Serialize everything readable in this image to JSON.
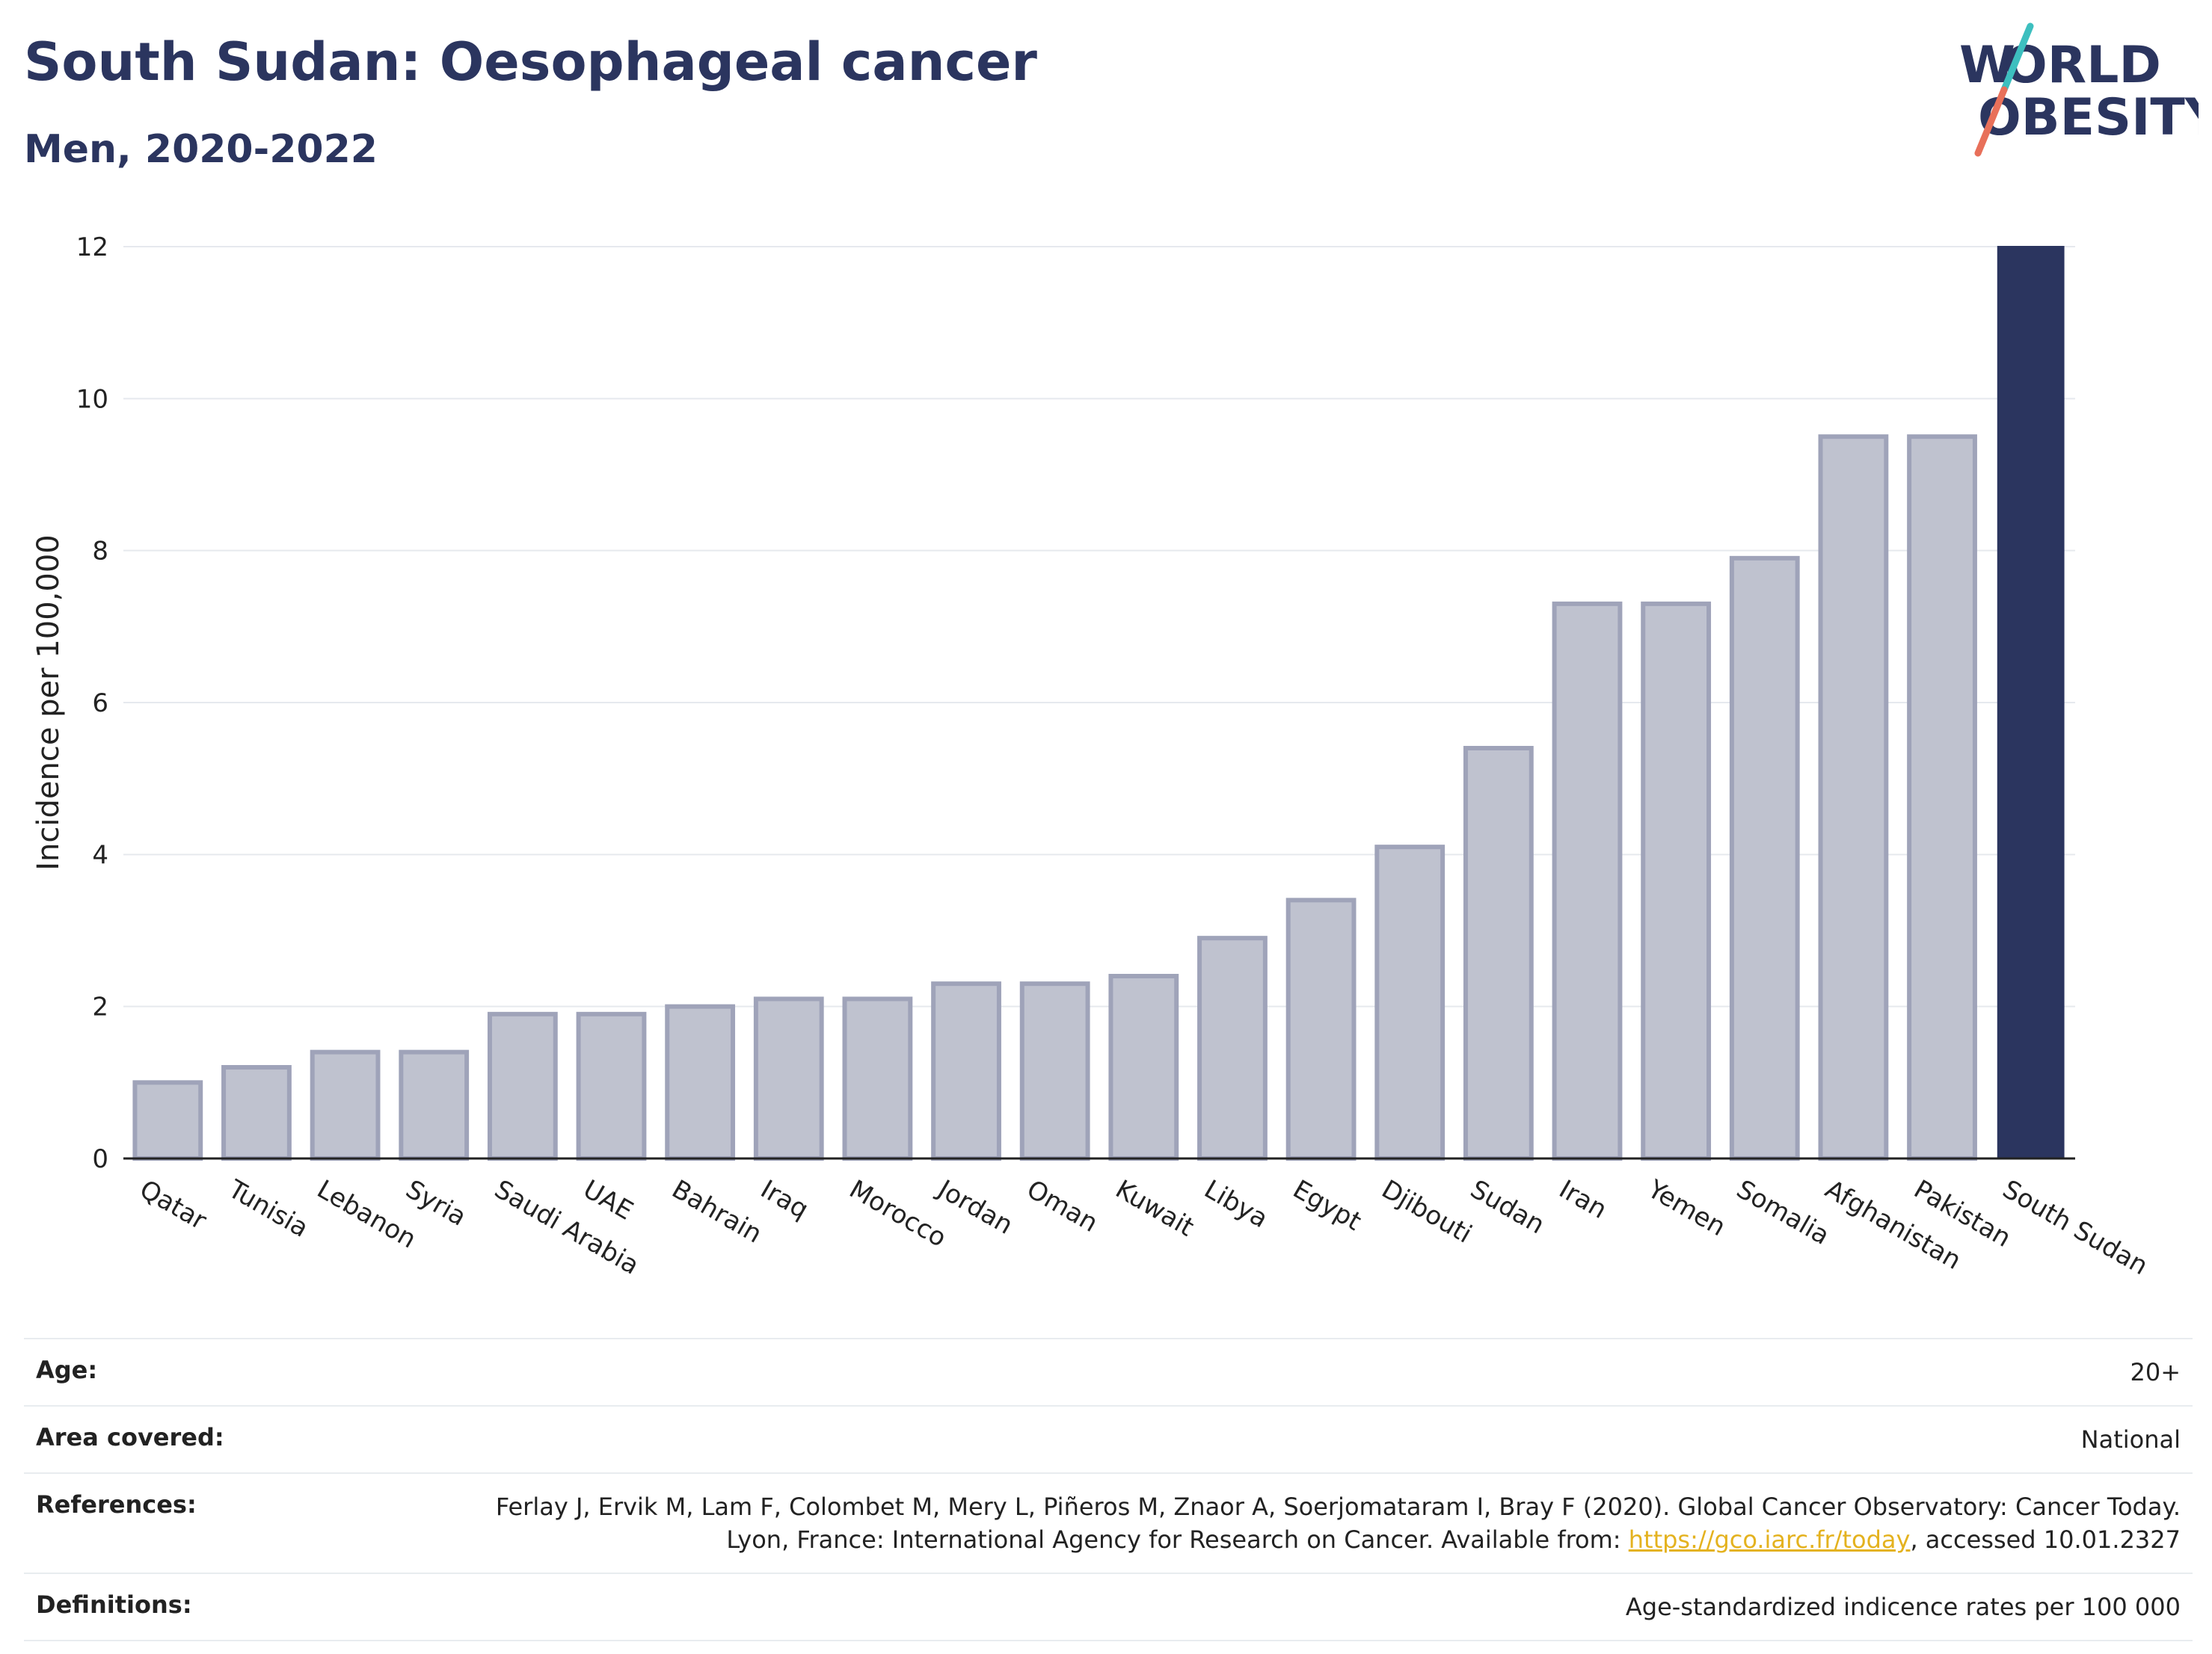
{
  "header": {
    "title": "South Sudan: Oesophageal cancer",
    "subtitle": "Men, 2020-2022"
  },
  "logo": {
    "line1": "WORLD",
    "line2": "OBESITY"
  },
  "chart_data": {
    "type": "bar",
    "categories": [
      "Qatar",
      "Tunisia",
      "Lebanon",
      "Syria",
      "Saudi Arabia",
      "UAE",
      "Bahrain",
      "Iraq",
      "Morocco",
      "Jordan",
      "Oman",
      "Kuwait",
      "Libya",
      "Egypt",
      "Djibouti",
      "Sudan",
      "Iran",
      "Yemen",
      "Somalia",
      "Afghanistan",
      "Pakistan",
      "South Sudan"
    ],
    "values": [
      1.0,
      1.2,
      1.4,
      1.4,
      1.9,
      1.9,
      2.0,
      2.1,
      2.1,
      2.3,
      2.3,
      2.4,
      2.9,
      3.4,
      4.1,
      5.4,
      7.3,
      7.3,
      7.9,
      9.5,
      9.5,
      12.0
    ],
    "highlight": "South Sudan",
    "ylabel": "Incidence per 100,000",
    "ylim": [
      0,
      12
    ],
    "yticks": [
      0,
      2,
      4,
      6,
      8,
      10,
      12
    ],
    "grid": true,
    "colors": {
      "bar": "#bfc2cf",
      "bar_border": "#9fa3b9",
      "highlight": "#2b355f",
      "grid": "#e6e9ee"
    }
  },
  "meta": {
    "age_label": "Age:",
    "age_value": "20+",
    "area_label": "Area covered:",
    "area_value": "National",
    "references_label": "References:",
    "references_text": "Ferlay J, Ervik M, Lam F, Colombet M, Mery L, Piñeros M, Znaor A, Soerjomataram I, Bray F (2020). Global Cancer Observatory: Cancer Today. Lyon, France: International Agency for Research on Cancer. Available from: ",
    "references_link": "https://gco.iarc.fr/today",
    "references_suffix": ", accessed 10.01.2327",
    "definitions_label": "Definitions:",
    "definitions_value": "Age-standardized indicence rates per 100 000"
  }
}
